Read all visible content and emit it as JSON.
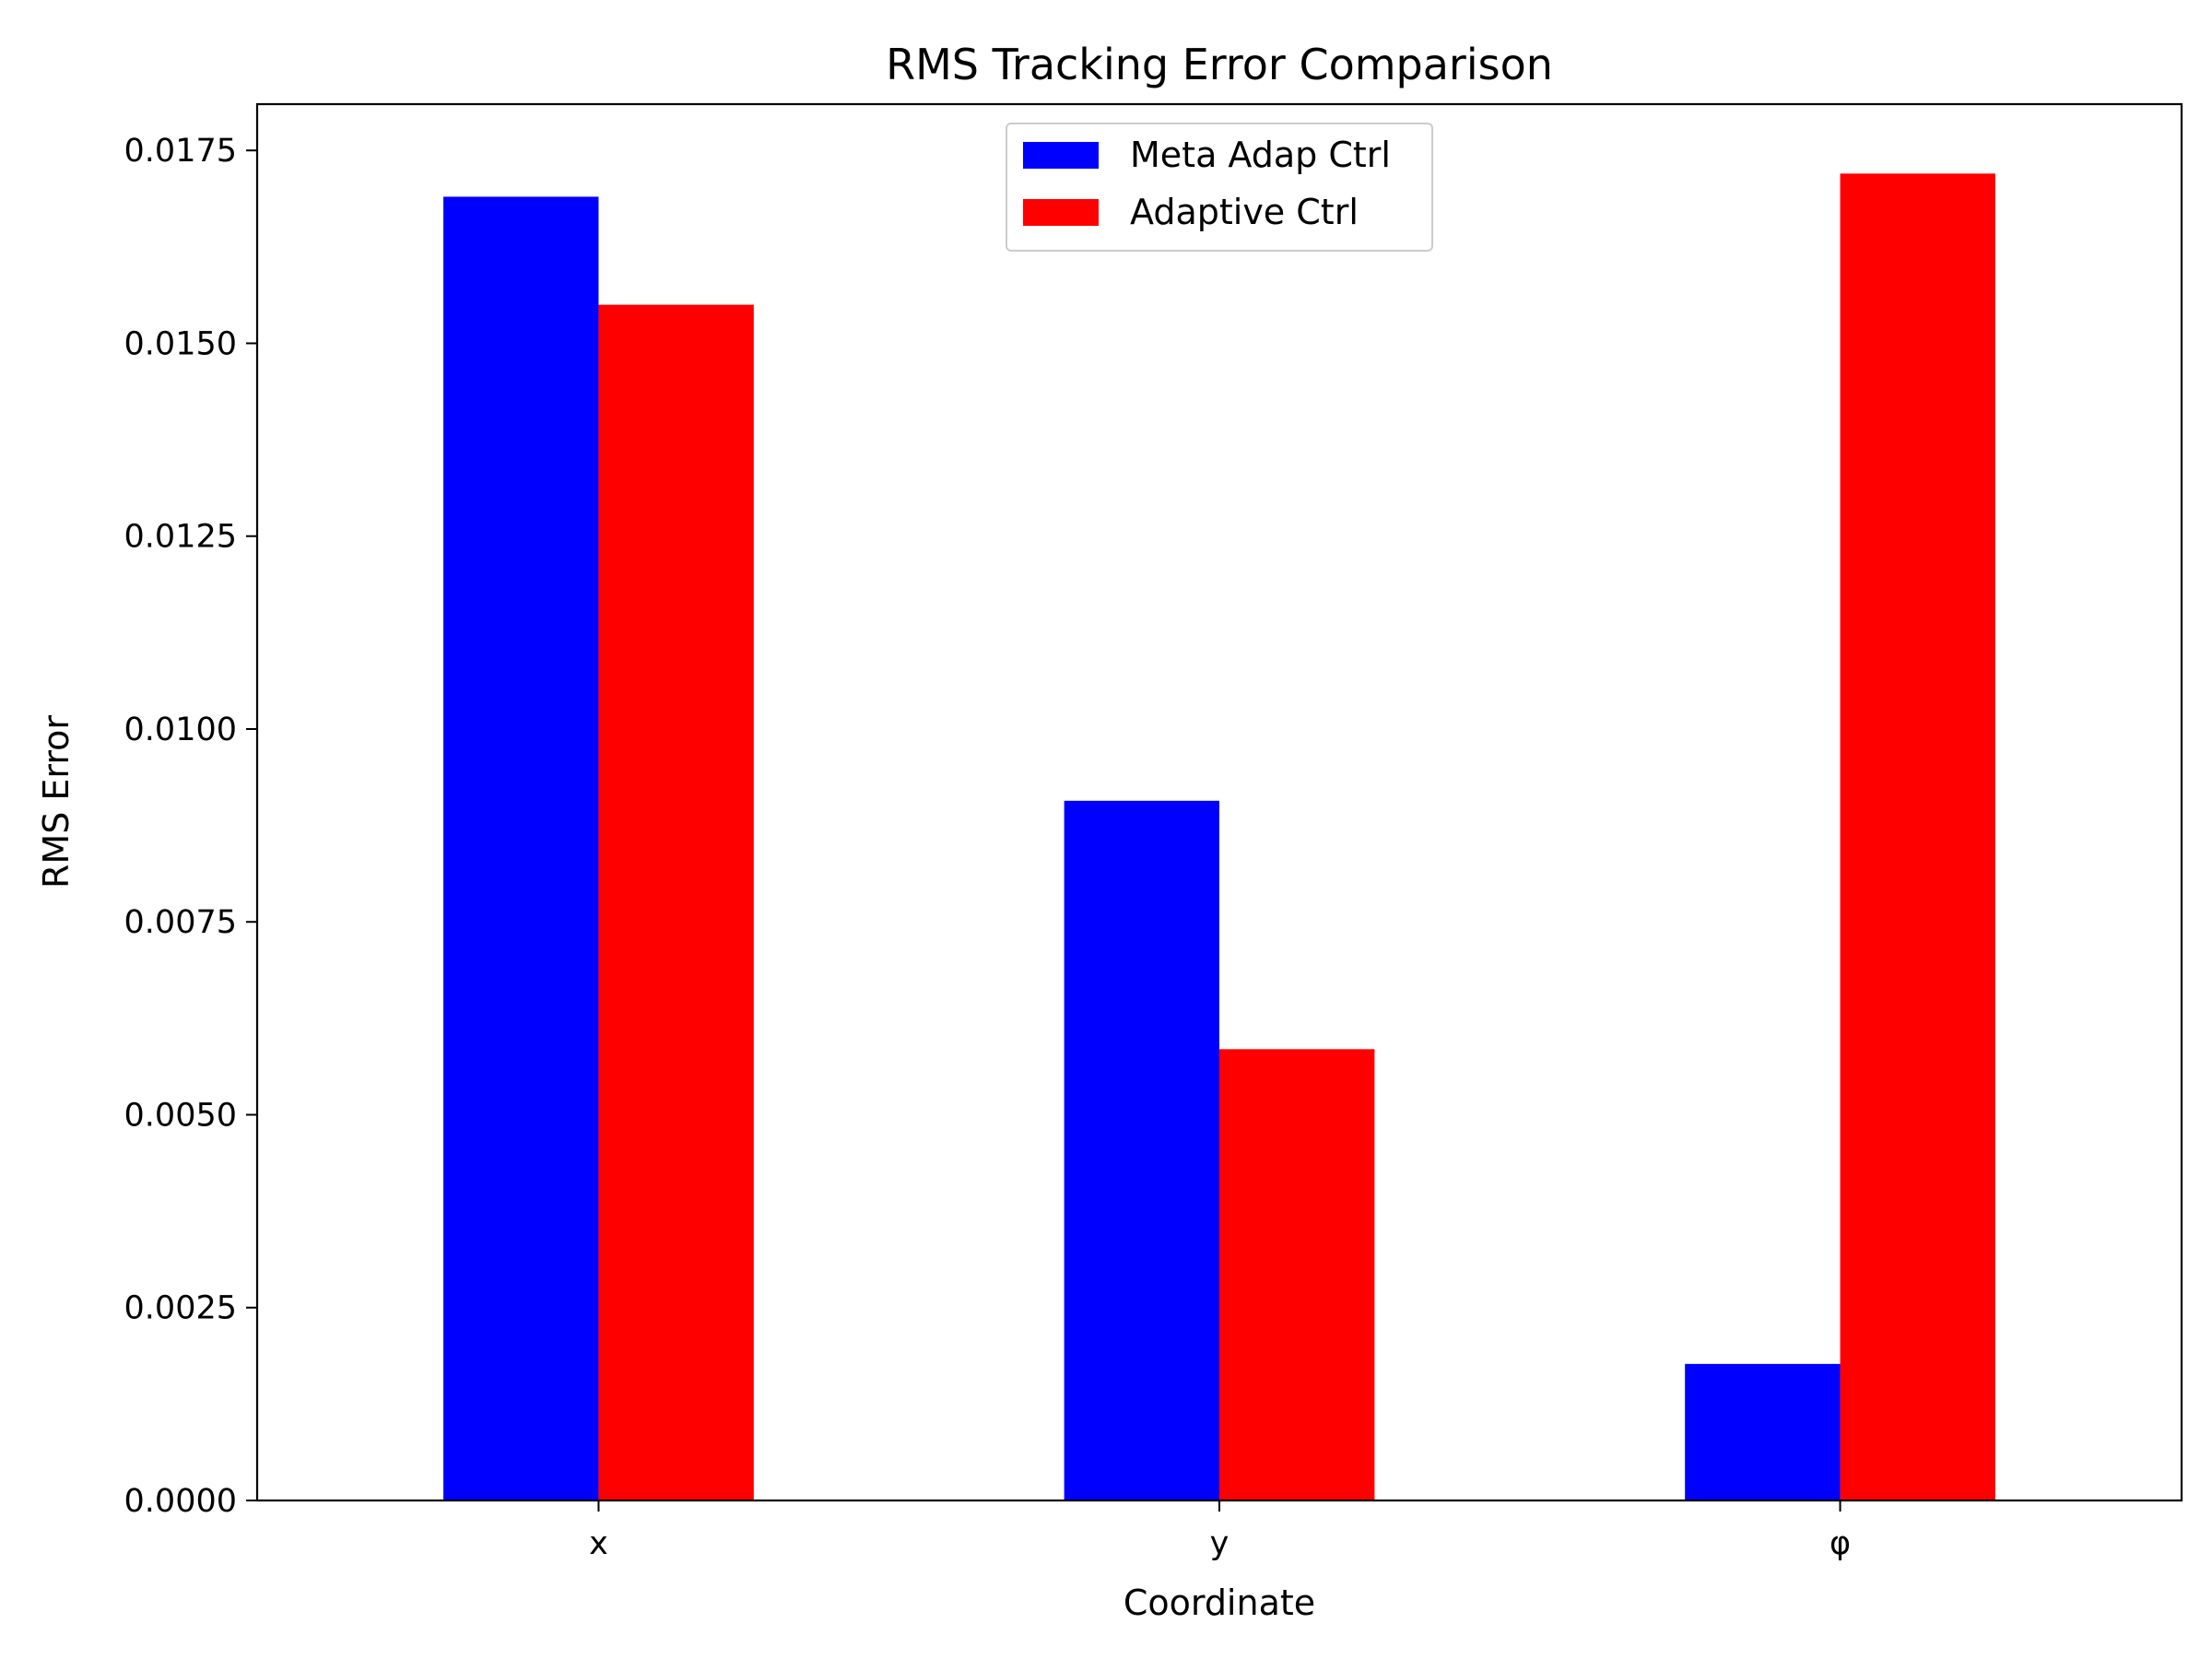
{
  "chart_data": {
    "type": "bar",
    "title": "RMS Tracking Error Comparison",
    "xlabel": "Coordinate",
    "ylabel": "RMS Error",
    "categories": [
      "x",
      "y",
      "φ"
    ],
    "series": [
      {
        "name": "Meta Adap Ctrl",
        "color": "#0000ff",
        "values": [
          0.0169,
          0.00907,
          0.00177
        ]
      },
      {
        "name": "Adaptive Ctrl",
        "color": "#ff0000",
        "values": [
          0.0155,
          0.00585,
          0.0172
        ]
      }
    ],
    "ylim": [
      0,
      0.0181
    ],
    "yticks": [
      "0.0000",
      "0.0025",
      "0.0050",
      "0.0075",
      "0.0100",
      "0.0125",
      "0.0150",
      "0.0175"
    ],
    "grid": false,
    "legend_position": "top-center"
  }
}
